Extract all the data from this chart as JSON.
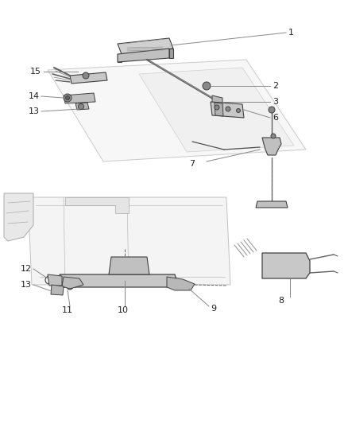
{
  "bg_color": "#ffffff",
  "line_color": "#404040",
  "gray_light": "#d8d8d8",
  "gray_mid": "#b0b0b0",
  "gray_dark": "#707070",
  "leader_color": "#888888",
  "text_color": "#222222",
  "fig_width": 4.38,
  "fig_height": 5.33,
  "dpi": 100
}
